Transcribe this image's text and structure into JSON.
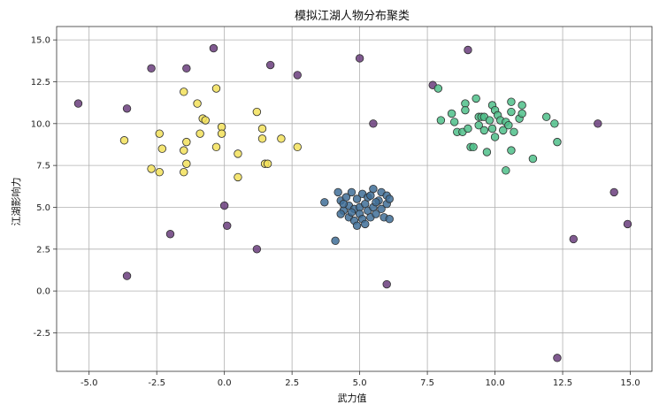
{
  "chart_data": {
    "type": "scatter",
    "title": "模拟江湖人物分布聚类",
    "xlabel": "武力值",
    "ylabel": "江湖影响力",
    "xlim": [
      -6.2,
      15.8
    ],
    "ylim": [
      -4.8,
      15.8
    ],
    "xticks": [
      -5.0,
      -2.5,
      0.0,
      2.5,
      5.0,
      7.5,
      10.0,
      12.5,
      15.0
    ],
    "yticks": [
      -2.5,
      0.0,
      2.5,
      5.0,
      7.5,
      10.0,
      12.5,
      15.0
    ],
    "grid": true,
    "legend": "none",
    "colors": {
      "outlier": "#6a3d7c",
      "blue": "#3f6f98",
      "green": "#4fc08a",
      "yellow": "#f2e15a"
    },
    "series": [
      {
        "color_key": "outlier",
        "points": [
          [
            -5.4,
            11.2
          ],
          [
            -3.6,
            10.9
          ],
          [
            -2.7,
            13.3
          ],
          [
            -1.4,
            13.3
          ],
          [
            -0.4,
            14.5
          ],
          [
            1.7,
            13.5
          ],
          [
            2.7,
            12.9
          ],
          [
            5.0,
            13.9
          ],
          [
            5.5,
            10.0
          ],
          [
            7.7,
            12.3
          ],
          [
            9.0,
            14.4
          ],
          [
            13.8,
            10.0
          ],
          [
            14.4,
            5.9
          ],
          [
            14.9,
            4.0
          ],
          [
            12.9,
            3.1
          ],
          [
            12.3,
            -4.0
          ],
          [
            6.0,
            0.4
          ],
          [
            1.2,
            2.5
          ],
          [
            -2.0,
            3.4
          ],
          [
            -3.6,
            0.9
          ],
          [
            0.0,
            5.1
          ],
          [
            0.1,
            3.9
          ]
        ]
      },
      {
        "color_key": "yellow",
        "points": [
          [
            -3.7,
            9.0
          ],
          [
            -2.4,
            9.4
          ],
          [
            -2.3,
            8.5
          ],
          [
            -2.7,
            7.3
          ],
          [
            -2.4,
            7.1
          ],
          [
            -1.5,
            11.9
          ],
          [
            -1.0,
            11.2
          ],
          [
            -0.8,
            10.3
          ],
          [
            -0.7,
            10.2
          ],
          [
            -0.3,
            12.1
          ],
          [
            -0.1,
            9.8
          ],
          [
            -0.1,
            9.4
          ],
          [
            -1.4,
            8.9
          ],
          [
            -1.5,
            8.4
          ],
          [
            -1.4,
            7.6
          ],
          [
            -1.5,
            7.1
          ],
          [
            -0.3,
            8.6
          ],
          [
            0.5,
            8.2
          ],
          [
            0.5,
            6.8
          ],
          [
            1.2,
            10.7
          ],
          [
            1.4,
            9.7
          ],
          [
            1.4,
            9.1
          ],
          [
            2.1,
            9.1
          ],
          [
            2.7,
            8.6
          ],
          [
            1.5,
            7.6
          ],
          [
            1.6,
            7.6
          ],
          [
            -0.9,
            9.4
          ]
        ]
      },
      {
        "color_key": "blue",
        "points": [
          [
            3.7,
            5.3
          ],
          [
            4.1,
            3.0
          ],
          [
            4.2,
            5.9
          ],
          [
            4.3,
            5.4
          ],
          [
            4.4,
            4.8
          ],
          [
            4.5,
            5.6
          ],
          [
            4.6,
            4.4
          ],
          [
            4.6,
            5.1
          ],
          [
            4.7,
            5.9
          ],
          [
            4.8,
            4.9
          ],
          [
            4.8,
            4.2
          ],
          [
            4.9,
            5.5
          ],
          [
            5.0,
            5.0
          ],
          [
            5.0,
            4.6
          ],
          [
            5.1,
            5.8
          ],
          [
            5.1,
            4.3
          ],
          [
            5.2,
            5.2
          ],
          [
            5.3,
            4.8
          ],
          [
            5.3,
            5.6
          ],
          [
            5.4,
            4.4
          ],
          [
            5.5,
            6.1
          ],
          [
            5.5,
            5.0
          ],
          [
            5.6,
            4.6
          ],
          [
            5.7,
            5.4
          ],
          [
            5.8,
            4.9
          ],
          [
            5.8,
            5.9
          ],
          [
            5.9,
            4.4
          ],
          [
            6.0,
            5.2
          ],
          [
            6.0,
            5.7
          ],
          [
            6.1,
            4.3
          ],
          [
            6.1,
            5.5
          ],
          [
            4.9,
            3.9
          ],
          [
            4.4,
            5.2
          ],
          [
            4.7,
            4.7
          ],
          [
            5.2,
            4.0
          ],
          [
            5.6,
            5.3
          ],
          [
            4.3,
            4.6
          ],
          [
            5.4,
            5.7
          ]
        ]
      },
      {
        "color_key": "green",
        "points": [
          [
            7.9,
            12.1
          ],
          [
            8.0,
            10.2
          ],
          [
            8.4,
            10.6
          ],
          [
            8.5,
            10.1
          ],
          [
            8.6,
            9.5
          ],
          [
            8.8,
            9.5
          ],
          [
            8.9,
            11.2
          ],
          [
            8.9,
            10.8
          ],
          [
            9.0,
            9.7
          ],
          [
            9.1,
            8.6
          ],
          [
            9.2,
            8.6
          ],
          [
            9.3,
            11.5
          ],
          [
            9.4,
            10.4
          ],
          [
            9.4,
            9.9
          ],
          [
            9.5,
            10.4
          ],
          [
            9.6,
            10.4
          ],
          [
            9.6,
            9.6
          ],
          [
            9.7,
            8.3
          ],
          [
            9.9,
            11.1
          ],
          [
            9.9,
            9.7
          ],
          [
            10.0,
            10.8
          ],
          [
            10.0,
            9.2
          ],
          [
            10.1,
            10.5
          ],
          [
            10.2,
            10.2
          ],
          [
            10.3,
            9.6
          ],
          [
            10.4,
            10.1
          ],
          [
            10.4,
            7.2
          ],
          [
            10.5,
            9.9
          ],
          [
            10.6,
            11.3
          ],
          [
            10.6,
            10.7
          ],
          [
            10.6,
            8.4
          ],
          [
            10.7,
            9.5
          ],
          [
            10.9,
            10.3
          ],
          [
            11.0,
            11.1
          ],
          [
            11.0,
            10.6
          ],
          [
            11.4,
            7.9
          ],
          [
            11.9,
            10.4
          ],
          [
            12.2,
            10.0
          ],
          [
            12.3,
            8.9
          ],
          [
            9.8,
            10.2
          ]
        ]
      }
    ]
  }
}
